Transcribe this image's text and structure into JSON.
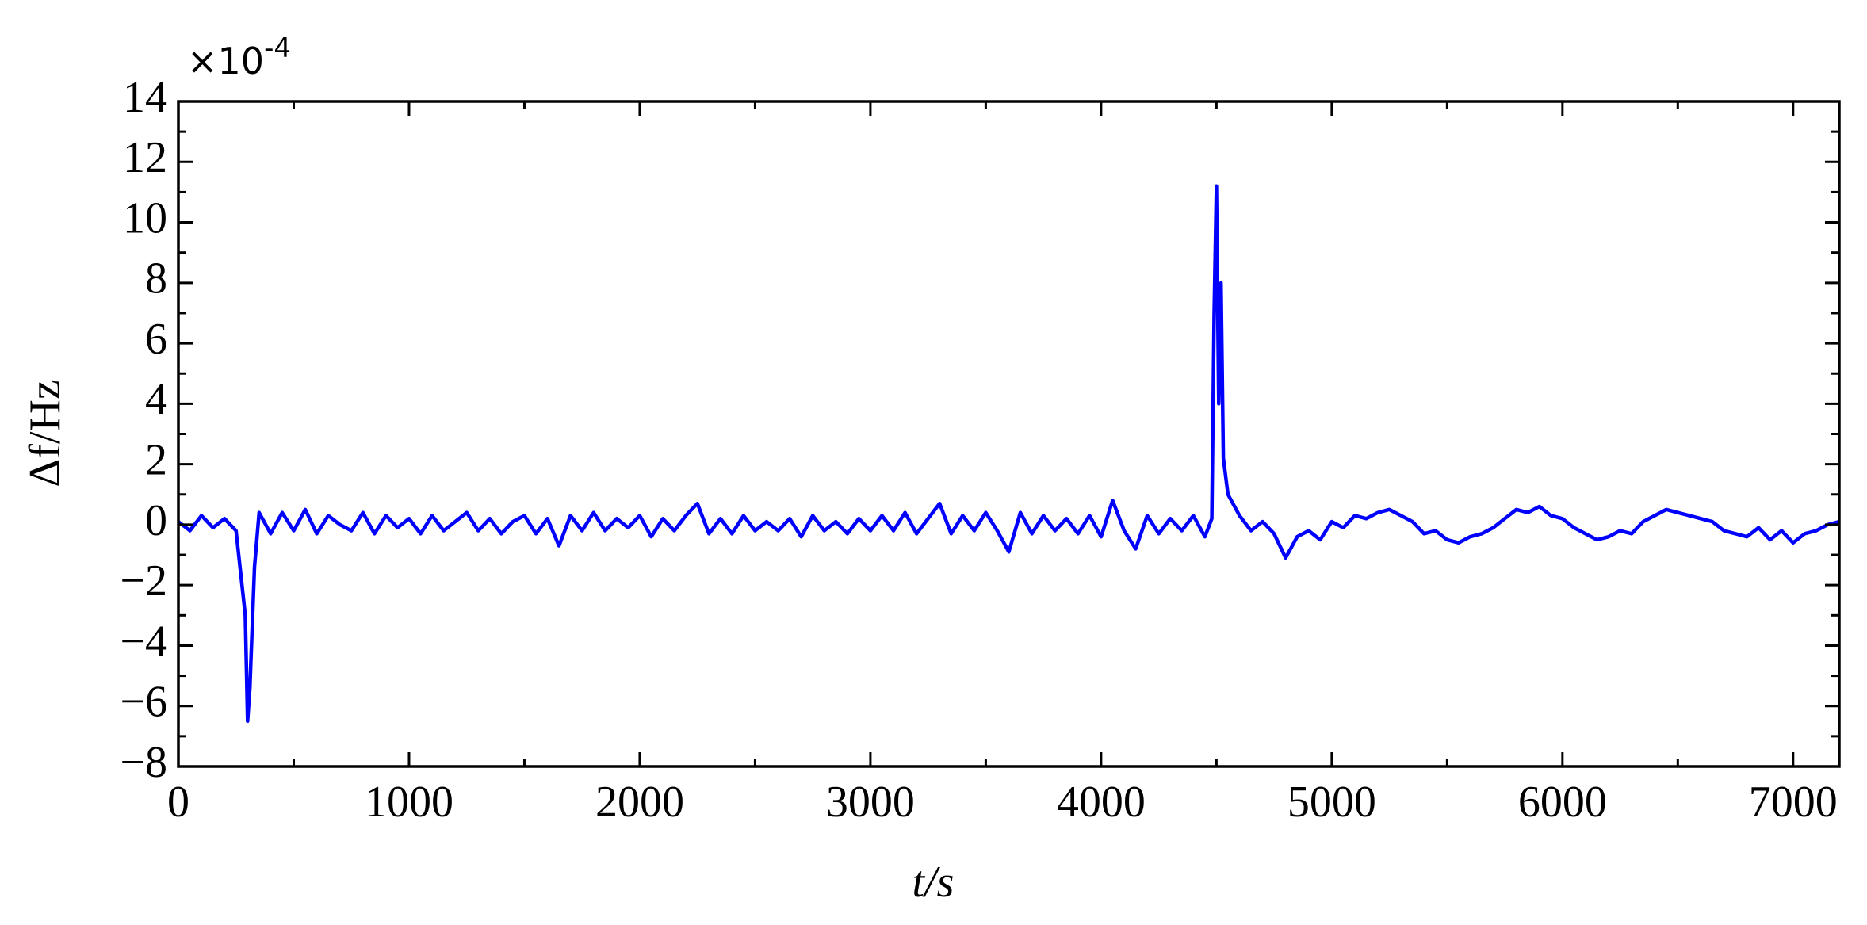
{
  "chart_data": {
    "type": "line",
    "xlabel": "t/s",
    "ylabel": "Δf/Hz",
    "y_multiplier": {
      "base": "×10",
      "exponent": "-4"
    },
    "xlim": [
      0,
      7200
    ],
    "xticks": [
      0,
      1000,
      2000,
      3000,
      4000,
      5000,
      6000,
      7000
    ],
    "ylim": [
      -8,
      14
    ],
    "yticks": [
      {
        "value": -8,
        "label": "−8"
      },
      {
        "value": -6,
        "label": "−6"
      },
      {
        "value": -4,
        "label": "−4"
      },
      {
        "value": -2,
        "label": "−2"
      },
      0,
      2,
      4,
      6,
      8,
      10,
      12,
      14
    ],
    "grid": false,
    "series": [
      {
        "color": "#0000ff",
        "x": [
          0,
          50,
          100,
          150,
          200,
          250,
          290,
          300,
          310,
          330,
          350,
          400,
          450,
          500,
          550,
          600,
          650,
          700,
          750,
          800,
          850,
          900,
          950,
          1000,
          1050,
          1100,
          1150,
          1200,
          1250,
          1300,
          1350,
          1400,
          1450,
          1500,
          1550,
          1600,
          1650,
          1700,
          1750,
          1800,
          1850,
          1900,
          1950,
          2000,
          2050,
          2100,
          2150,
          2200,
          2250,
          2300,
          2350,
          2400,
          2450,
          2500,
          2550,
          2600,
          2650,
          2700,
          2750,
          2800,
          2850,
          2900,
          2950,
          3000,
          3050,
          3100,
          3150,
          3200,
          3250,
          3300,
          3350,
          3400,
          3450,
          3500,
          3550,
          3600,
          3650,
          3700,
          3750,
          3800,
          3850,
          3900,
          3950,
          4000,
          4050,
          4100,
          4150,
          4200,
          4250,
          4300,
          4350,
          4400,
          4450,
          4480,
          4490,
          4500,
          4510,
          4520,
          4530,
          4550,
          4600,
          4650,
          4700,
          4750,
          4800,
          4850,
          4900,
          4950,
          5000,
          5050,
          5100,
          5150,
          5200,
          5250,
          5300,
          5350,
          5400,
          5450,
          5500,
          5550,
          5600,
          5650,
          5700,
          5750,
          5800,
          5850,
          5900,
          5950,
          6000,
          6050,
          6100,
          6150,
          6200,
          6250,
          6300,
          6350,
          6400,
          6450,
          6500,
          6550,
          6600,
          6650,
          6700,
          6750,
          6800,
          6850,
          6900,
          6950,
          7000,
          7050,
          7100,
          7150,
          7200
        ],
        "values": [
          0.1,
          -0.2,
          0.3,
          -0.1,
          0.2,
          -0.2,
          -3.0,
          -6.5,
          -5.4,
          -1.4,
          0.4,
          -0.3,
          0.4,
          -0.2,
          0.5,
          -0.3,
          0.3,
          0.0,
          -0.2,
          0.4,
          -0.3,
          0.3,
          -0.1,
          0.2,
          -0.3,
          0.3,
          -0.2,
          0.1,
          0.4,
          -0.2,
          0.2,
          -0.3,
          0.1,
          0.3,
          -0.3,
          0.2,
          -0.7,
          0.3,
          -0.2,
          0.4,
          -0.2,
          0.2,
          -0.1,
          0.3,
          -0.4,
          0.2,
          -0.2,
          0.3,
          0.7,
          -0.3,
          0.2,
          -0.3,
          0.3,
          -0.2,
          0.1,
          -0.2,
          0.2,
          -0.4,
          0.3,
          -0.2,
          0.1,
          -0.3,
          0.2,
          -0.2,
          0.3,
          -0.2,
          0.4,
          -0.3,
          0.2,
          0.7,
          -0.3,
          0.3,
          -0.2,
          0.4,
          -0.2,
          -0.9,
          0.4,
          -0.3,
          0.3,
          -0.2,
          0.2,
          -0.3,
          0.3,
          -0.4,
          0.8,
          -0.2,
          -0.8,
          0.3,
          -0.3,
          0.2,
          -0.2,
          0.3,
          -0.4,
          0.2,
          7.0,
          11.2,
          4.0,
          8.0,
          2.2,
          1.0,
          0.3,
          -0.2,
          0.1,
          -0.3,
          -1.1,
          -0.4,
          -0.2,
          -0.5,
          0.1,
          -0.1,
          0.3,
          0.2,
          0.4,
          0.5,
          0.3,
          0.1,
          -0.3,
          -0.2,
          -0.5,
          -0.6,
          -0.4,
          -0.3,
          -0.1,
          0.2,
          0.5,
          0.4,
          0.6,
          0.3,
          0.2,
          -0.1,
          -0.3,
          -0.5,
          -0.4,
          -0.2,
          -0.3,
          0.1,
          0.3,
          0.5,
          0.4,
          0.3,
          0.2,
          0.1,
          -0.2,
          -0.3,
          -0.4,
          -0.1,
          -0.5,
          -0.2,
          -0.6,
          -0.3,
          -0.2,
          0.0,
          0.1
        ]
      }
    ]
  }
}
